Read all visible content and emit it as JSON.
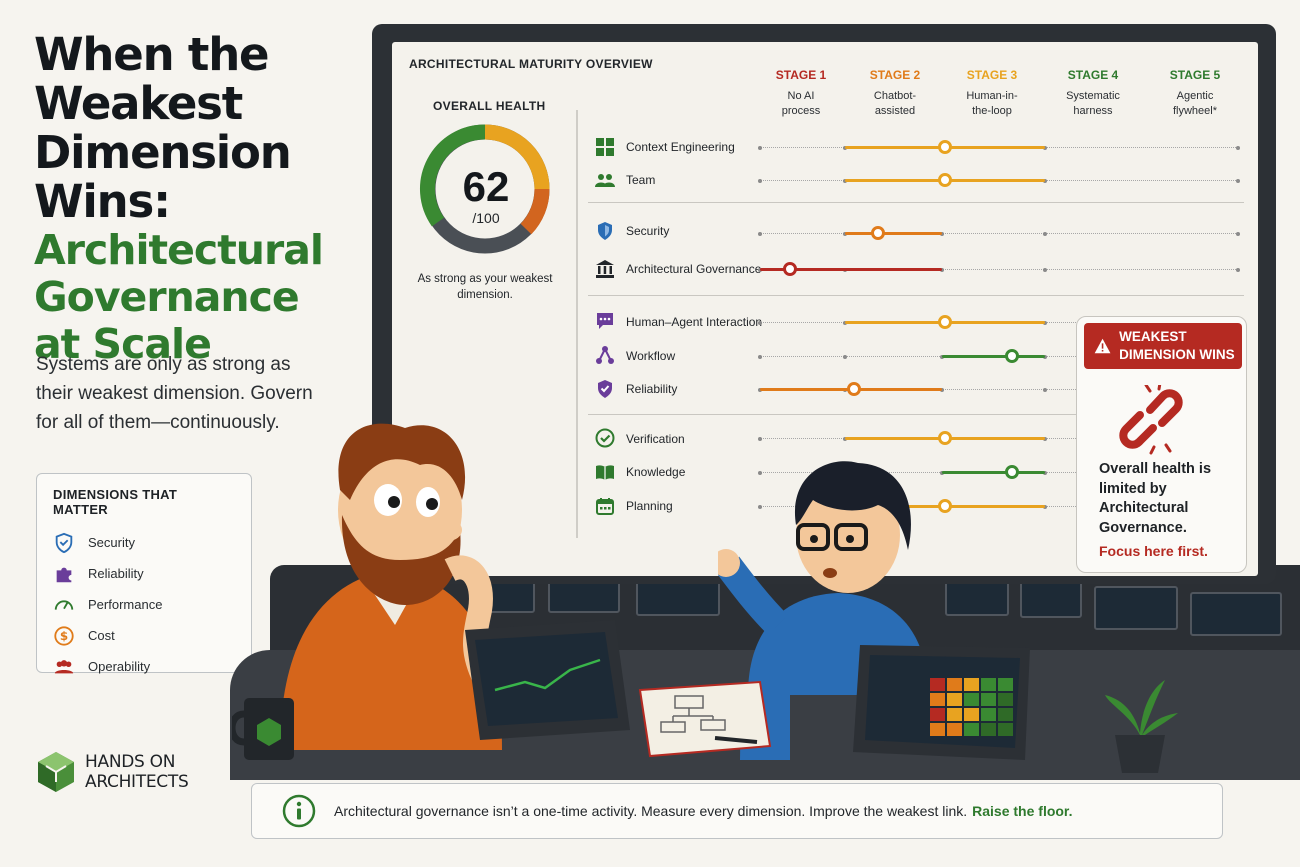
{
  "title": {
    "line1": "When the",
    "line2": "Weakest",
    "line3": "Dimension Wins:",
    "line4": "Architectural",
    "line5": "Governance",
    "line6": "at Scale"
  },
  "subtitle": "Systems are only as strong as their weakest dimension. Govern for all of them—continuously.",
  "dimensions_box": {
    "heading": "DIMENSIONS THAT MATTER",
    "items": [
      {
        "label": "Security",
        "icon": "shield-icon",
        "color": "#2a6db5"
      },
      {
        "label": "Reliability",
        "icon": "puzzle-icon",
        "color": "#6a3d9a"
      },
      {
        "label": "Performance",
        "icon": "speedometer-icon",
        "color": "#2f7a2e"
      },
      {
        "label": "Cost",
        "icon": "dollar-icon",
        "color": "#e07b1a"
      },
      {
        "label": "Operability",
        "icon": "people-icon",
        "color": "#b52a22"
      }
    ]
  },
  "brand": {
    "line1": "HANDS ON",
    "line2": "ARCHITECTS"
  },
  "screen": {
    "title": "ARCHITECTURAL MATURITY OVERVIEW",
    "overall": {
      "label": "OVERALL HEALTH",
      "value": "62",
      "denominator": "/100",
      "caption": "As strong as your weakest dimension."
    },
    "stages": [
      {
        "name": "STAGE 1",
        "desc": "No AI process",
        "color": "#b52a22"
      },
      {
        "name": "STAGE 2",
        "desc": "Chatbot-assisted",
        "color": "#e07b1a"
      },
      {
        "name": "STAGE 3",
        "desc": "Human-in-the-loop",
        "color": "#e8a320"
      },
      {
        "name": "STAGE 4",
        "desc": "Systematic harness",
        "color": "#2f7a2e"
      },
      {
        "name": "STAGE 5",
        "desc": "Agentic flywheel*",
        "color": "#2f7a2e"
      }
    ],
    "rows": [
      {
        "label": "Context Engineering",
        "icon": "grid-icon",
        "stage": 3
      },
      {
        "label": "Team",
        "icon": "people-icon",
        "stage": 3
      },
      {
        "label": "Security",
        "icon": "shield-icon",
        "stage": 2
      },
      {
        "label": "Architectural Governance",
        "icon": "building-icon",
        "stage": 1
      },
      {
        "label": "Human–Agent Interaction",
        "icon": "chat-icon",
        "stage": 3
      },
      {
        "label": "Workflow",
        "icon": "workflow-icon",
        "stage": 4
      },
      {
        "label": "Reliability",
        "icon": "shield-check-icon",
        "stage": 2
      },
      {
        "label": "Verification",
        "icon": "check-circle-icon",
        "stage": 3
      },
      {
        "label": "Knowledge",
        "icon": "book-icon",
        "stage": 4
      },
      {
        "label": "Planning",
        "icon": "calendar-icon",
        "stage": 3
      }
    ]
  },
  "weakest_card": {
    "badge": "WEAKEST DIMENSION WINS",
    "text": "Overall health is limited by Architectural Governance.",
    "focus": "Focus here first."
  },
  "footer": {
    "text": "Architectural governance isn’t a one-time activity. Measure every dimension. Improve the weakest link.",
    "highlight": "Raise the floor."
  }
}
